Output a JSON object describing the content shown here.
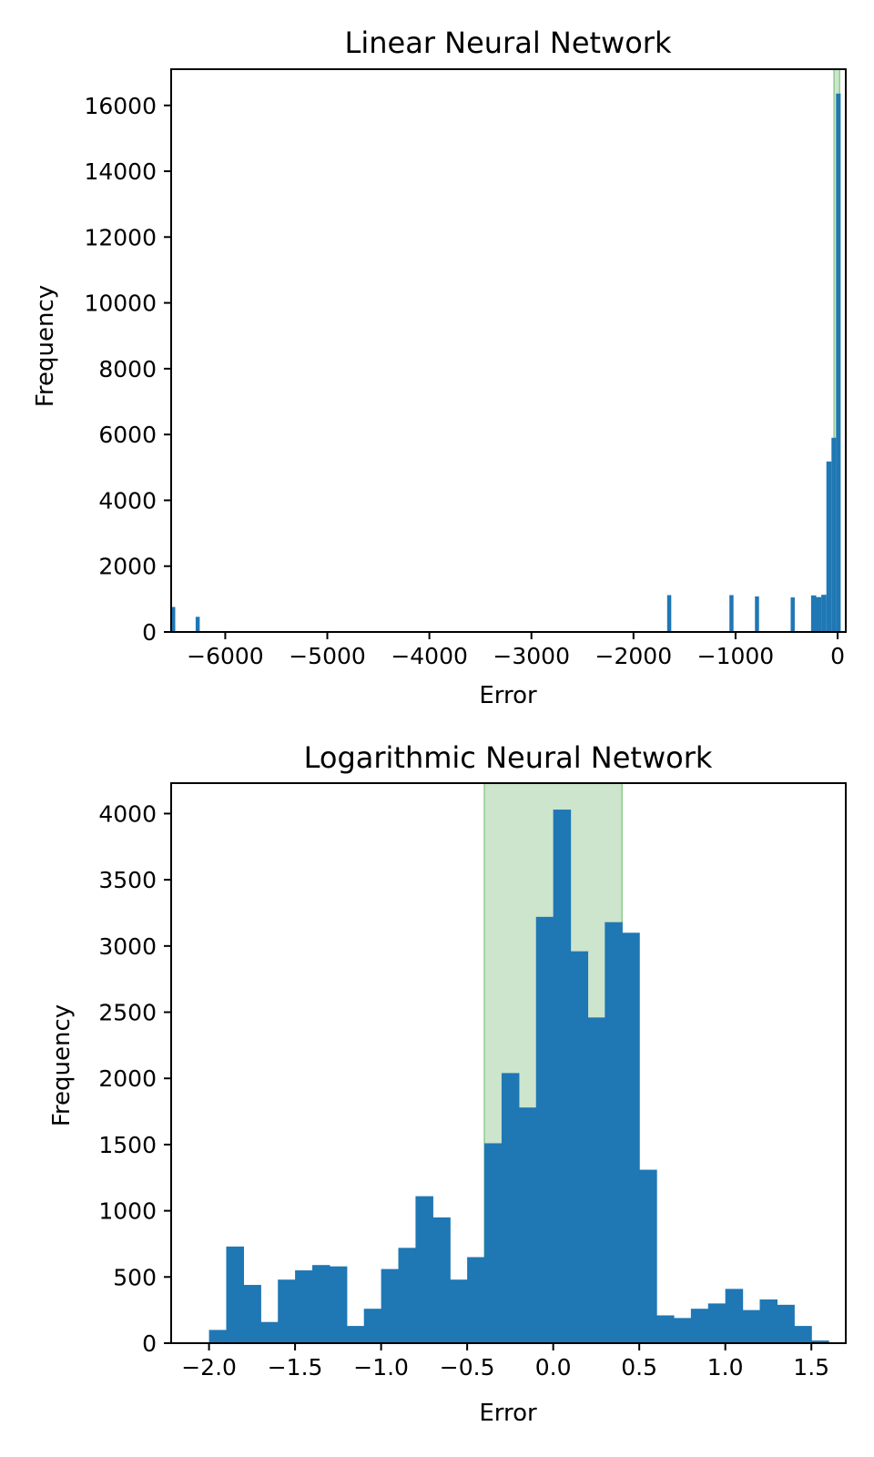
{
  "chart_data": [
    {
      "type": "bar",
      "title": "Linear Neural Network",
      "xlabel": "Error",
      "ylabel": "Frequency",
      "xlim": [
        -6530,
        80
      ],
      "ylim": [
        0,
        17100
      ],
      "xticks": [
        -6000,
        -5000,
        -4000,
        -3000,
        -2000,
        -1000,
        0
      ],
      "xtick_labels": [
        "−6000",
        "−5000",
        "−4000",
        "−3000",
        "−2000",
        "−1000",
        "0"
      ],
      "yticks": [
        0,
        2000,
        4000,
        6000,
        8000,
        10000,
        12000,
        14000,
        16000
      ],
      "ytick_labels": [
        "0",
        "2000",
        "4000",
        "6000",
        "8000",
        "10000",
        "12000",
        "14000",
        "16000"
      ],
      "highlight": {
        "range": [
          -35,
          20
        ],
        "color": "#cce5cc"
      },
      "bar_color": "#1f77b4",
      "bars": [
        {
          "x0": -6530,
          "x1": -6490,
          "value": 760
        },
        {
          "x0": -6290,
          "x1": -6250,
          "value": 460
        },
        {
          "x0": -1670,
          "x1": -1630,
          "value": 1120
        },
        {
          "x0": -1060,
          "x1": -1020,
          "value": 1120
        },
        {
          "x0": -810,
          "x1": -770,
          "value": 1080
        },
        {
          "x0": -460,
          "x1": -420,
          "value": 1050
        },
        {
          "x0": -260,
          "x1": -210,
          "value": 1110
        },
        {
          "x0": -210,
          "x1": -160,
          "value": 1060
        },
        {
          "x0": -160,
          "x1": -110,
          "value": 1130
        },
        {
          "x0": -110,
          "x1": -60,
          "value": 5180
        },
        {
          "x0": -60,
          "x1": -15,
          "value": 5900
        },
        {
          "x0": -15,
          "x1": 30,
          "value": 16360
        }
      ]
    },
    {
      "type": "bar",
      "title": "Logarithmic Neural Network",
      "xlabel": "Error",
      "ylabel": "Frequency",
      "xlim": [
        -2.22,
        1.7
      ],
      "ylim": [
        0,
        4230
      ],
      "xticks": [
        -2.0,
        -1.5,
        -1.0,
        -0.5,
        0.0,
        0.5,
        1.0,
        1.5
      ],
      "xtick_labels": [
        "−2.0",
        "−1.5",
        "−1.0",
        "−0.5",
        "0.0",
        "0.5",
        "1.0",
        "1.5"
      ],
      "yticks": [
        0,
        500,
        1000,
        1500,
        2000,
        2500,
        3000,
        3500,
        4000
      ],
      "ytick_labels": [
        "0",
        "500",
        "1000",
        "1500",
        "2000",
        "2500",
        "3000",
        "3500",
        "4000"
      ],
      "highlight": {
        "range": [
          -0.4,
          0.4
        ],
        "color": "#cce5cc"
      },
      "bar_color": "#1f77b4",
      "bin_start": -2.0,
      "bin_width": 0.1,
      "values": [
        100,
        730,
        440,
        160,
        480,
        550,
        590,
        580,
        130,
        260,
        560,
        720,
        1110,
        950,
        480,
        650,
        1510,
        2040,
        1780,
        3220,
        4030,
        2960,
        2460,
        3180,
        3100,
        1310,
        210,
        190,
        260,
        300,
        410,
        250,
        330,
        290,
        130,
        20
      ]
    }
  ]
}
